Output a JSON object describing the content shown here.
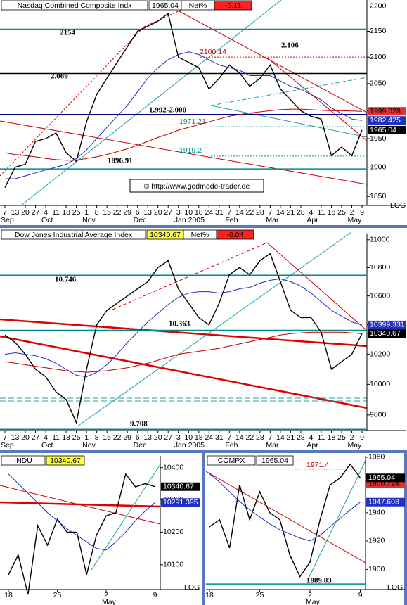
{
  "chart_data": [
    {
      "type": "line",
      "title": "Nasdaq Combined Composite Indx",
      "last": 1965.04,
      "net_label": "Net%",
      "net": -0.11,
      "categories": [
        "7",
        "13",
        "20",
        "27",
        "4",
        "11",
        "18",
        "25",
        "1",
        "8",
        "15",
        "22",
        "29",
        "6",
        "13",
        "20",
        "27",
        "3",
        "10",
        "18",
        "24",
        "31",
        "7",
        "14",
        "22",
        "28",
        "7",
        "14",
        "21",
        "28",
        "4",
        "11",
        "18",
        "25",
        "2",
        "9"
      ],
      "months": [
        "Sep",
        null,
        null,
        null,
        "Oct",
        null,
        null,
        null,
        "Nov",
        null,
        null,
        null,
        null,
        "Dec",
        null,
        null,
        null,
        "Jan 2005",
        null,
        null,
        null,
        null,
        "Feb",
        null,
        null,
        null,
        "Mar",
        null,
        null,
        null,
        "Apr",
        null,
        null,
        null,
        "May",
        null
      ],
      "series": [
        {
          "color": "#000000",
          "values": [
            1865,
            1900,
            1905,
            1945,
            1950,
            1960,
            1925,
            1910,
            1980,
            2030,
            2060,
            2090,
            2120,
            2150,
            2160,
            2170,
            2185,
            2100,
            2090,
            2080,
            2040,
            2060,
            2085,
            2070,
            2045,
            2060,
            2085,
            2040,
            2020,
            2000,
            1990,
            1985,
            1920,
            1935,
            1920,
            1965.04
          ]
        },
        {
          "color": "#2030c0",
          "values": [
            1880,
            1880,
            1885,
            1890,
            1895,
            1900,
            1905,
            1915,
            1930,
            1950,
            1970,
            1990,
            2010,
            2035,
            2060,
            2080,
            2095,
            2105,
            2110,
            2105,
            2095,
            2085,
            2080,
            2075,
            2065,
            2065,
            2065,
            2055,
            2045,
            2040,
            2030,
            2020,
            2005,
            1995,
            1985,
            1982.425
          ]
        },
        {
          "color": "#c00000",
          "values": [
            1925,
            1922,
            1920,
            1918,
            1915,
            1913,
            1912,
            1912,
            1915,
            1918,
            1922,
            1927,
            1932,
            1938,
            1945,
            1952,
            1958,
            1965,
            1970,
            1975,
            1980,
            1985,
            1990,
            1993,
            1996,
            1998,
            2000,
            2002,
            2003,
            2003,
            2002,
            2001,
            2000,
            2000,
            1999.5,
            1999.028
          ]
        }
      ],
      "ylim": [
        1835,
        2212
      ],
      "yticks": [
        1850,
        1900,
        1950,
        2000,
        2050,
        2100,
        2150,
        2200
      ],
      "log_scale": true,
      "scale_label": "LOG",
      "annotations": [
        {
          "value": 2154,
          "color": "#008b8b"
        },
        {
          "value": 2069,
          "label": "2.069",
          "color": "#000000"
        },
        {
          "value": 2100.14,
          "color": "#d00000",
          "dotted": true
        },
        {
          "value": 2106,
          "label": "2.106"
        },
        {
          "label": "1.992-2.000"
        },
        {
          "value": 1971.21,
          "color": "#008b8b",
          "dotted": true
        },
        {
          "value": 1919.2,
          "color": "#008b8b",
          "dotted": true
        },
        {
          "value": 1896.91,
          "color": "#008b8b"
        }
      ],
      "price_labels": [
        {
          "value": 1999.028,
          "color": "#e03030"
        },
        {
          "value": 1982.425,
          "color": "#2030c0"
        },
        {
          "value": 1965.04,
          "color": "#000000"
        }
      ],
      "credit": "© http://www.godmode-trader.de"
    },
    {
      "type": "line",
      "title": "Dow Jones Industrial Average Index",
      "last": 10340.67,
      "net_label": "Net%",
      "net": -0.04,
      "categories": [
        "7",
        "13",
        "20",
        "27",
        "4",
        "11",
        "18",
        "25",
        "1",
        "8",
        "15",
        "22",
        "29",
        "6",
        "13",
        "20",
        "27",
        "3",
        "10",
        "18",
        "24",
        "31",
        "7",
        "14",
        "22",
        "28",
        "7",
        "14",
        "21",
        "28",
        "4",
        "11",
        "18",
        "25",
        "2",
        "9"
      ],
      "months": [
        "Sep",
        null,
        null,
        null,
        "Oct",
        null,
        null,
        null,
        "Nov",
        null,
        null,
        null,
        null,
        "Dec",
        null,
        null,
        null,
        "Jan 2005",
        null,
        null,
        null,
        null,
        "Feb",
        null,
        null,
        null,
        "Mar",
        null,
        null,
        null,
        "Apr",
        null,
        null,
        null,
        "May",
        null
      ],
      "series": [
        {
          "color": "#000000",
          "values": [
            10330,
            10280,
            10200,
            10100,
            10050,
            9950,
            9900,
            9750,
            10100,
            10400,
            10500,
            10550,
            10600,
            10650,
            10700,
            10800,
            10850,
            10650,
            10550,
            10450,
            10400,
            10550,
            10750,
            10800,
            10750,
            10850,
            10900,
            10700,
            10500,
            10450,
            10450,
            10350,
            10100,
            10150,
            10200,
            10340.67
          ]
        },
        {
          "color": "#2030c0",
          "values": [
            10200,
            10210,
            10200,
            10190,
            10170,
            10140,
            10100,
            10060,
            10050,
            10080,
            10130,
            10200,
            10280,
            10350,
            10420,
            10480,
            10540,
            10590,
            10620,
            10630,
            10630,
            10620,
            10630,
            10650,
            10660,
            10690,
            10710,
            10720,
            10700,
            10670,
            10620,
            10560,
            10500,
            10460,
            10420,
            10399.331
          ]
        },
        {
          "color": "#c00000",
          "values": [
            10150,
            10140,
            10130,
            10120,
            10110,
            10100,
            10090,
            10085,
            10080,
            10085,
            10090,
            10100,
            10110,
            10125,
            10140,
            10160,
            10180,
            10200,
            10210,
            10220,
            10230,
            10240,
            10255,
            10270,
            10285,
            10300,
            10315,
            10330,
            10340,
            10345,
            10350,
            10350,
            10350,
            10350,
            10345,
            10340
          ]
        }
      ],
      "ylim": [
        9700,
        11040
      ],
      "yticks": [
        9800,
        10000,
        10200,
        10400,
        10600,
        10800,
        11000
      ],
      "log_scale": true,
      "annotations": [
        {
          "value": 10746,
          "label": "10.746",
          "color": "#008b8b"
        },
        {
          "value": 10363,
          "label": "10.363",
          "color": "#008b8b"
        },
        {
          "value": 9708,
          "label": "9.708",
          "color": "#008b8b"
        }
      ],
      "price_labels": [
        {
          "value": 10399.331,
          "color": "#2030c0"
        },
        {
          "value": 10340.67,
          "color": "#000000"
        }
      ]
    },
    {
      "type": "line",
      "title": "INDU",
      "last": 10340.67,
      "categories": [
        "18",
        null,
        null,
        null,
        null,
        "25",
        null,
        null,
        null,
        null,
        "2",
        null,
        null,
        null,
        null,
        "9"
      ],
      "months": [
        null,
        null,
        null,
        null,
        null,
        null,
        null,
        null,
        null,
        null,
        "May",
        null,
        null,
        null,
        null,
        null
      ],
      "series": [
        {
          "color": "#000000",
          "values": [
            10070,
            10130,
            10010,
            10220,
            10160,
            10240,
            10200,
            10200,
            10070,
            10190,
            10250,
            10260,
            10380,
            10340,
            10350,
            10340.67
          ]
        },
        {
          "color": "#2030c0",
          "values": [
            10380,
            10350,
            10320,
            10290,
            10260,
            10235,
            10210,
            10190,
            10170,
            10150,
            10145,
            10170,
            10200,
            10235,
            10265,
            10291.395
          ]
        }
      ],
      "ylim": [
        10025,
        10437
      ],
      "yticks": [
        10100,
        10200,
        10300,
        10400
      ],
      "log_scale": true,
      "scale_label": "LOG",
      "price_labels": [
        {
          "value": 10340.67,
          "color": "#000000"
        },
        {
          "value": 10291.395,
          "color": "#2030c0"
        }
      ]
    },
    {
      "type": "line",
      "title": "COMPX",
      "last": 1965.04,
      "categories": [
        "18",
        null,
        null,
        null,
        null,
        "25",
        null,
        null,
        null,
        null,
        "2",
        null,
        null,
        null,
        null,
        "9"
      ],
      "months": [
        null,
        null,
        null,
        null,
        null,
        null,
        null,
        null,
        null,
        null,
        "May",
        null,
        null,
        null,
        null,
        null
      ],
      "series": [
        {
          "color": "#000000",
          "values": [
            1930,
            1935,
            1915,
            1960,
            1935,
            1955,
            1940,
            1935,
            1910,
            1895,
            1905,
            1935,
            1960,
            1965,
            1975,
            1965.04
          ]
        },
        {
          "color": "#2030c0",
          "values": [
            1968,
            1962,
            1955,
            1948,
            1942,
            1937,
            1932,
            1928,
            1925,
            1922,
            1920,
            1924,
            1930,
            1936,
            1942,
            1947.608
          ]
        }
      ],
      "ylim": [
        1886,
        1981
      ],
      "yticks": [
        1900,
        1920,
        1940,
        1960,
        1980
      ],
      "log_scale": true,
      "scale_label": "LOG",
      "annotations": [
        {
          "value": 1971.4,
          "color": "#d00000",
          "dotted": true
        },
        {
          "value": 1889.83,
          "color": "#008b8b"
        }
      ],
      "price_labels": [
        {
          "value": 1960.724,
          "color": "#e03030"
        },
        {
          "value": 1947.608,
          "color": "#2030c0"
        },
        {
          "value": 1965.04,
          "color": "#000000"
        }
      ]
    }
  ]
}
